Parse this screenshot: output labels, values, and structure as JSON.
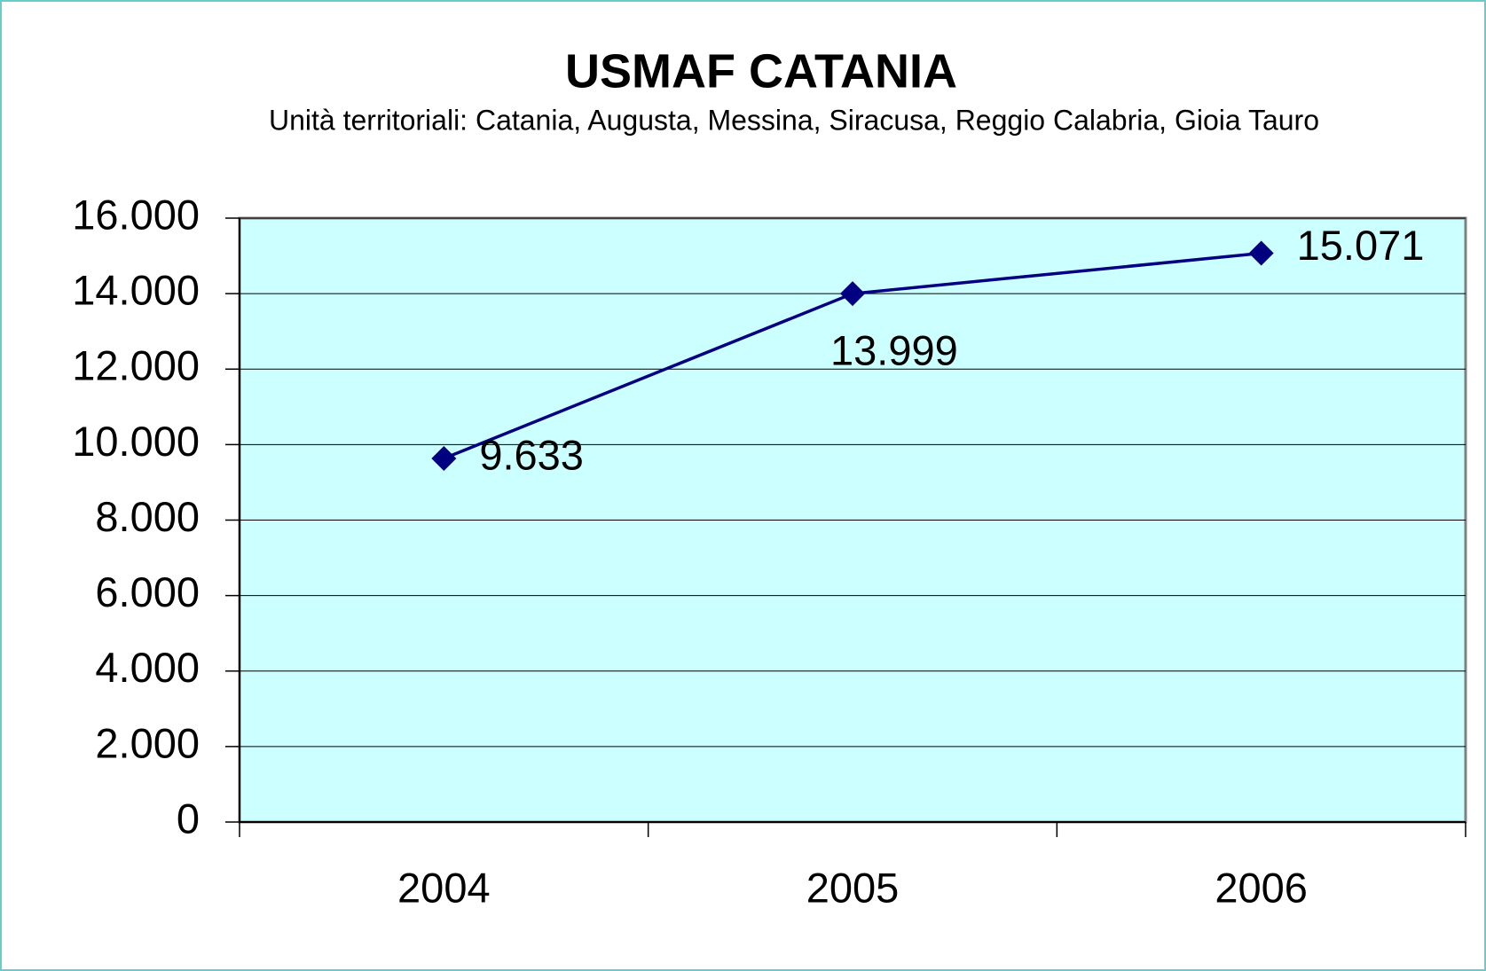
{
  "chart_data": {
    "type": "line",
    "title": "USMAF CATANIA",
    "subtitle": "Unità territoriali: Catania, Augusta, Messina, Siracusa, Reggio Calabria, Gioia Tauro",
    "categories": [
      "2004",
      "2005",
      "2006"
    ],
    "values": [
      9633,
      13999,
      15071
    ],
    "value_labels": [
      "9.633",
      "13.999",
      "15.071"
    ],
    "color": "#000080",
    "ylim": [
      0,
      16000
    ],
    "yticks": [
      0,
      {
        "value": 2000,
        "label": "2.000"
      },
      {
        "value": 4000,
        "label": "4.000"
      },
      {
        "value": 6000,
        "label": "6.000"
      },
      {
        "value": 8000,
        "label": "8.000"
      },
      {
        "value": 10000,
        "label": "10.000"
      },
      {
        "value": 12000,
        "label": "12.000"
      },
      {
        "value": 14000,
        "label": "14.000"
      },
      {
        "value": 16000,
        "label": "16.000"
      }
    ],
    "grid": true
  }
}
